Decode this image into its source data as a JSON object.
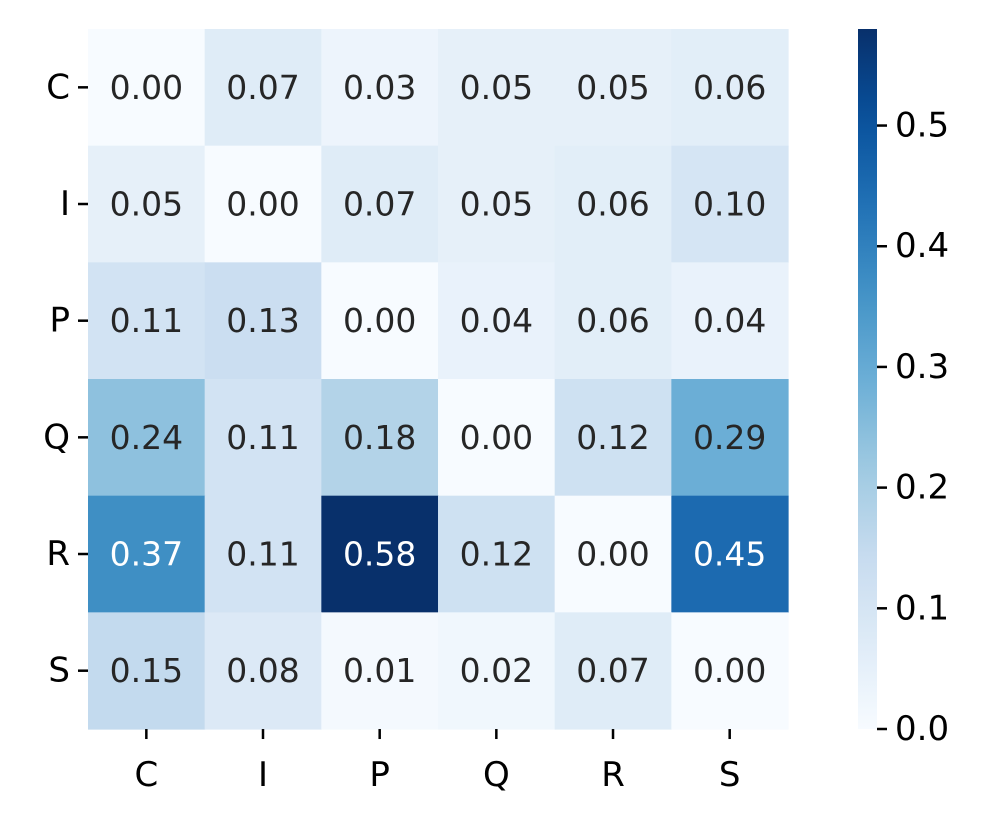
{
  "chart_data": {
    "type": "heatmap",
    "title": "",
    "xlabel": "",
    "ylabel": "",
    "x_categories": [
      "C",
      "I",
      "P",
      "Q",
      "R",
      "S"
    ],
    "y_categories": [
      "C",
      "I",
      "P",
      "Q",
      "R",
      "S"
    ],
    "values": [
      [
        0.0,
        0.07,
        0.03,
        0.05,
        0.05,
        0.06
      ],
      [
        0.05,
        0.0,
        0.07,
        0.05,
        0.06,
        0.1
      ],
      [
        0.11,
        0.13,
        0.0,
        0.04,
        0.06,
        0.04
      ],
      [
        0.24,
        0.11,
        0.18,
        0.0,
        0.12,
        0.29
      ],
      [
        0.37,
        0.11,
        0.58,
        0.12,
        0.0,
        0.45
      ],
      [
        0.15,
        0.08,
        0.01,
        0.02,
        0.07,
        0.0
      ]
    ],
    "annotations": [
      [
        "0.00",
        "0.07",
        "0.03",
        "0.05",
        "0.05",
        "0.06"
      ],
      [
        "0.05",
        "0.00",
        "0.07",
        "0.05",
        "0.06",
        "0.10"
      ],
      [
        "0.11",
        "0.13",
        "0.00",
        "0.04",
        "0.06",
        "0.04"
      ],
      [
        "0.24",
        "0.11",
        "0.18",
        "0.00",
        "0.12",
        "0.29"
      ],
      [
        "0.37",
        "0.11",
        "0.58",
        "0.12",
        "0.00",
        "0.45"
      ],
      [
        "0.15",
        "0.08",
        "0.01",
        "0.02",
        "0.07",
        "0.00"
      ]
    ],
    "colorbar": {
      "colormap": "Blues",
      "range": [
        0.0,
        0.58
      ],
      "ticks": [
        0.0,
        0.1,
        0.2,
        0.3,
        0.4,
        0.5
      ],
      "tick_labels": [
        "0.0",
        "0.1",
        "0.2",
        "0.3",
        "0.4",
        "0.5"
      ]
    },
    "grid": false,
    "colors": {
      "text_dark": "#262626",
      "text_light": "#ffffff"
    }
  }
}
